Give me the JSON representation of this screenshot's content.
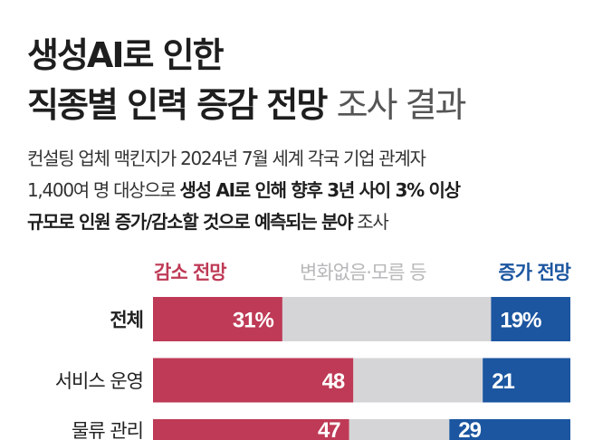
{
  "title": {
    "line1": "생성AI로 인한",
    "line2_bold": "직종별 인력 증감 전망",
    "line2_light": "조사 결과"
  },
  "subtitle": {
    "line1": "컨설팅 업체 맥킨지가 2024년 7월 세계 각국 기업 관계자",
    "line2_normal": "1,400여 명 대상으로",
    "line2_bold": "생성 AI로 인해 향후 3년 사이 3% 이상",
    "line3_bold": "규모로 인원 증가/감소할 것으로 예측되는 분야",
    "line3_normal": "조사"
  },
  "colors": {
    "decrease": "#be3a56",
    "neutral": "#d5d5d7",
    "increase": "#1c56a0"
  },
  "chart_data": {
    "type": "bar",
    "orientation": "horizontal",
    "stacked": true,
    "unit": "%",
    "legend": [
      "감소 전망",
      "변화없음·모름 등",
      "증가 전망"
    ],
    "categories": [
      "전체",
      "서비스 운영",
      "물류 관리"
    ],
    "series": [
      {
        "name": "감소 전망",
        "values": [
          31,
          48,
          47
        ],
        "labels": [
          "31%",
          "48",
          "47"
        ]
      },
      {
        "name": "변화없음·모름 등",
        "values": [
          50,
          31,
          24
        ]
      },
      {
        "name": "증가 전망",
        "values": [
          19,
          21,
          29
        ],
        "labels": [
          "19%",
          "21",
          "29"
        ]
      }
    ],
    "xlim": [
      0,
      100
    ]
  }
}
